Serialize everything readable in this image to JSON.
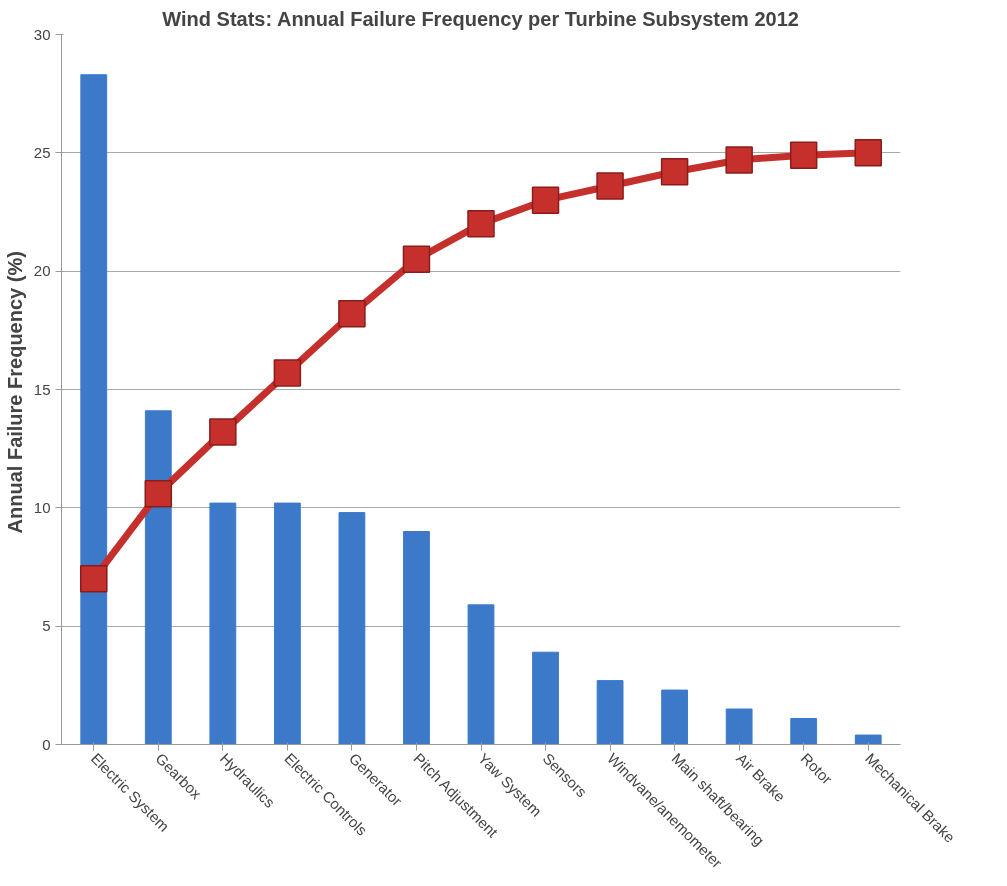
{
  "chart_data": {
    "type": "bar",
    "title": "Wind Stats: Annual Failure Frequency per Turbine Subsystem 2012",
    "ylabel": "Annual  Failure Frequency (%)",
    "categories": [
      "Electric System",
      "Gearbox",
      "Hydraulics",
      "Electric Controls",
      "Generator",
      "Pitch Adjustment",
      "Yaw System",
      "Sensors",
      "Windvane/anemometer",
      "Main shaft/bearing",
      "Air Brake",
      "Rotor",
      "Mechanical Brake"
    ],
    "series": [
      {
        "color": "#3c7ac9",
        "values": [
          28.3,
          14.1,
          10.2,
          10.2,
          9.8,
          9.0,
          5.9,
          3.9,
          2.7,
          2.3,
          1.5,
          1.1,
          0.4
        ]
      },
      {
        "type": "line",
        "color": "#c5302c",
        "marker": "square",
        "line_style": "solid",
        "values": [
          7.0,
          10.6,
          13.2,
          15.7,
          18.2,
          20.5,
          22.0,
          23.0,
          23.6,
          24.2,
          24.7,
          24.9,
          25.0
        ]
      }
    ],
    "ylim": [
      0,
      30
    ],
    "yticks": [
      0,
      5,
      10,
      15,
      20,
      25,
      30
    ],
    "grid": "y"
  }
}
